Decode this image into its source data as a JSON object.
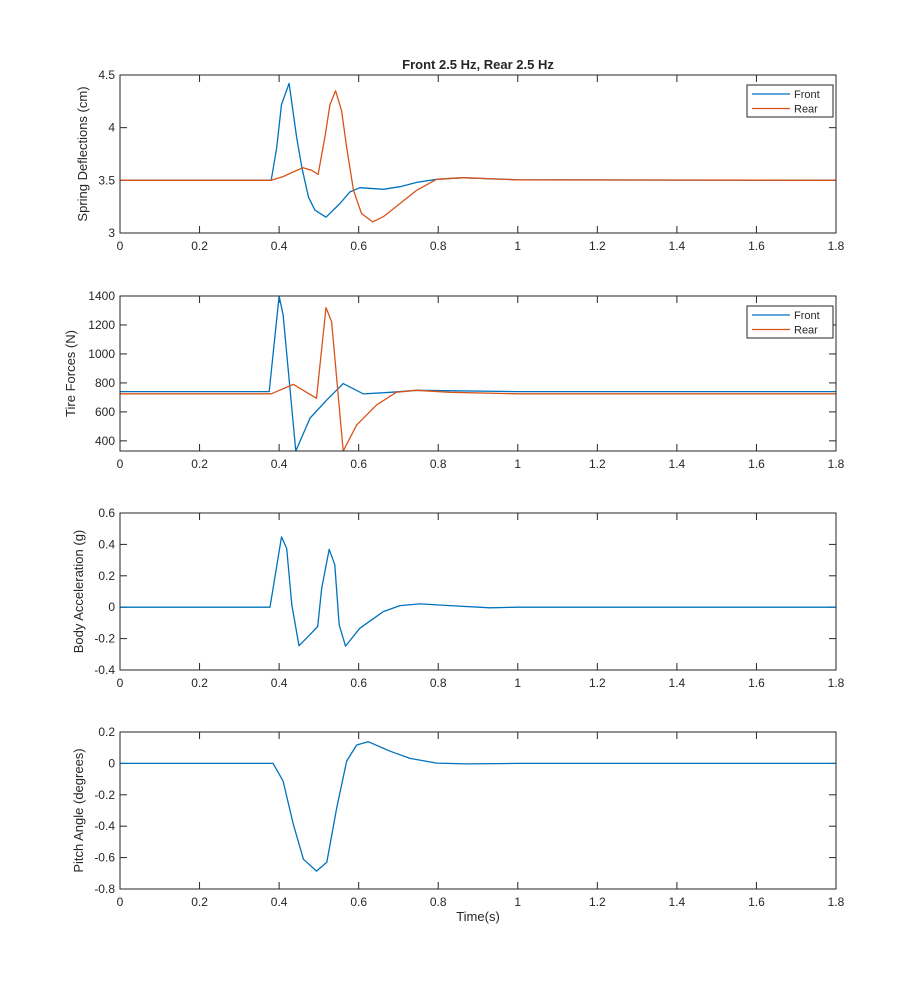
{
  "chart_data": [
    {
      "type": "line",
      "title": "Front 2.5 Hz, Rear 2.5 Hz",
      "xlabel": "",
      "ylabel": "Spring Deflections (cm)",
      "xlim": [
        0,
        1.8
      ],
      "ylim": [
        3,
        4.5
      ],
      "xticks": [
        "0",
        "0.2",
        "0.4",
        "0.6",
        "0.8",
        "1",
        "1.2",
        "1.4",
        "1.6",
        "1.8"
      ],
      "yticks": [
        "3",
        "3.5",
        "4",
        "4.5"
      ],
      "legend": {
        "placement": "top-right",
        "entries": [
          "Front",
          "Rear"
        ]
      },
      "series": [
        {
          "name": "Front",
          "color": "#0072BD",
          "x": [
            0,
            0.38,
            0.394,
            0.406,
            0.425,
            0.444,
            0.457,
            0.474,
            0.49,
            0.518,
            0.553,
            0.578,
            0.603,
            0.662,
            0.704,
            0.746,
            0.796,
            0.862,
            1.0,
            1.8
          ],
          "y": [
            3.5,
            3.5,
            3.81,
            4.22,
            4.42,
            3.91,
            3.625,
            3.34,
            3.217,
            3.15,
            3.28,
            3.39,
            3.43,
            3.415,
            3.44,
            3.48,
            3.51,
            3.525,
            3.505,
            3.5
          ]
        },
        {
          "name": "Rear",
          "color": "#D95319",
          "x": [
            0,
            0.38,
            0.41,
            0.436,
            0.46,
            0.482,
            0.498,
            0.515,
            0.528,
            0.542,
            0.557,
            0.57,
            0.587,
            0.607,
            0.635,
            0.662,
            0.704,
            0.746,
            0.796,
            0.862,
            1.0,
            1.8
          ],
          "y": [
            3.5,
            3.5,
            3.535,
            3.58,
            3.62,
            3.595,
            3.555,
            3.91,
            4.22,
            4.35,
            4.16,
            3.81,
            3.405,
            3.185,
            3.105,
            3.155,
            3.28,
            3.405,
            3.51,
            3.525,
            3.505,
            3.5
          ]
        }
      ]
    },
    {
      "type": "line",
      "title": "",
      "xlabel": "",
      "ylabel": "Tire Forces (N)",
      "xlim": [
        0,
        1.8
      ],
      "ylim": [
        330,
        1400
      ],
      "xticks": [
        "0",
        "0.2",
        "0.4",
        "0.6",
        "0.8",
        "1",
        "1.2",
        "1.4",
        "1.6",
        "1.8"
      ],
      "yticks": [
        "400",
        "600",
        "800",
        "1000",
        "1200",
        "1400"
      ],
      "legend": {
        "placement": "top-right",
        "entries": [
          "Front",
          "Rear"
        ]
      },
      "series": [
        {
          "name": "Front",
          "color": "#0072BD",
          "x": [
            0,
            0.375,
            0.4,
            0.41,
            0.442,
            0.478,
            0.52,
            0.561,
            0.612,
            0.68,
            0.746,
            1.0,
            1.8
          ],
          "y": [
            740,
            740,
            1400,
            1270,
            330,
            558,
            683,
            795,
            724,
            735,
            749,
            740,
            740
          ]
        },
        {
          "name": "Rear",
          "color": "#D95319",
          "x": [
            0,
            0.38,
            0.436,
            0.494,
            0.518,
            0.532,
            0.561,
            0.595,
            0.645,
            0.695,
            0.746,
            0.83,
            1.0,
            1.8
          ],
          "y": [
            725,
            725,
            790,
            694,
            1320,
            1223,
            330,
            510,
            648,
            736,
            749,
            735,
            725,
            725
          ]
        }
      ]
    },
    {
      "type": "line",
      "title": "",
      "xlabel": "",
      "ylabel": "Body Acceleration (g)",
      "xlim": [
        0,
        1.8
      ],
      "ylim": [
        -0.4,
        0.6
      ],
      "xticks": [
        "0",
        "0.2",
        "0.4",
        "0.6",
        "0.8",
        "1",
        "1.2",
        "1.4",
        "1.6",
        "1.8"
      ],
      "yticks": [
        "-0.4",
        "-0.2",
        "0",
        "0.2",
        "0.4",
        "0.6"
      ],
      "series": [
        {
          "name": "Body Acceleration",
          "color": "#0072BD",
          "x": [
            0,
            0.377,
            0.406,
            0.419,
            0.432,
            0.45,
            0.473,
            0.497,
            0.507,
            0.526,
            0.54,
            0.551,
            0.567,
            0.603,
            0.662,
            0.704,
            0.754,
            0.829,
            0.93,
            1.0,
            1.8
          ],
          "y": [
            0,
            0,
            0.448,
            0.374,
            0.015,
            -0.245,
            -0.187,
            -0.123,
            0.121,
            0.369,
            0.27,
            -0.113,
            -0.248,
            -0.134,
            -0.028,
            0.01,
            0.021,
            0.01,
            -0.004,
            0,
            0
          ]
        }
      ]
    },
    {
      "type": "line",
      "title": "",
      "xlabel": "Time(s)",
      "ylabel": "Pitch Angle (degrees)",
      "xlim": [
        0,
        1.8
      ],
      "ylim": [
        -0.8,
        0.2
      ],
      "xticks": [
        "0",
        "0.2",
        "0.4",
        "0.6",
        "0.8",
        "1",
        "1.2",
        "1.4",
        "1.6",
        "1.8"
      ],
      "yticks": [
        "-0.8",
        "-0.6",
        "-0.4",
        "-0.2",
        "0",
        "0.2"
      ],
      "series": [
        {
          "name": "Pitch Angle",
          "color": "#0072BD",
          "x": [
            0,
            0.385,
            0.41,
            0.436,
            0.461,
            0.494,
            0.52,
            0.545,
            0.57,
            0.595,
            0.624,
            0.679,
            0.729,
            0.796,
            0.87,
            1.0,
            1.8
          ],
          "y": [
            0,
            0,
            -0.113,
            -0.39,
            -0.61,
            -0.686,
            -0.63,
            -0.28,
            0.015,
            0.117,
            0.138,
            0.078,
            0.032,
            0.002,
            -0.003,
            0,
            0
          ]
        }
      ]
    }
  ]
}
